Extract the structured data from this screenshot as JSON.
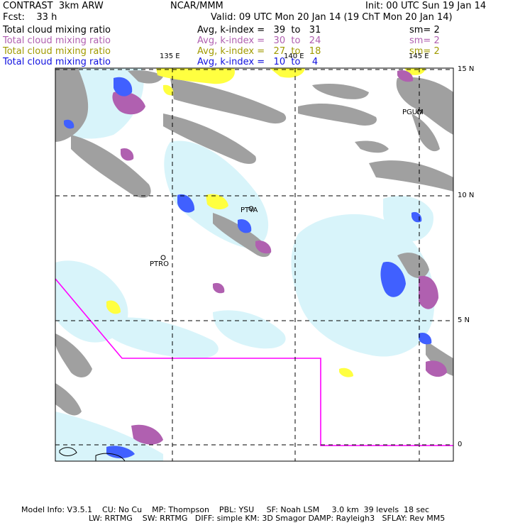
{
  "header": {
    "model": "CONTRAST  3km ARW",
    "org": "NCAR/MMM",
    "init": "Init: 00 UTC Sun 19 Jan 14",
    "fcst": "Fcst:    33 h",
    "valid": "Valid: 09 UTC Mon 20 Jan 14 (19 ChT Mon 20 Jan 14)"
  },
  "fields": [
    {
      "name": "Total cloud mixing ratio",
      "stat": "Avg, k-index =   39  to   31",
      "sm": "sm= 2",
      "color": "#000000"
    },
    {
      "name": "Total cloud mixing ratio",
      "stat": "Avg, k-index =   30  to   24",
      "sm": "sm= 2",
      "color": "#b060b0"
    },
    {
      "name": "Total cloud mixing ratio",
      "stat": "Avg, k-index =   27  to   18",
      "sm": "sm= 2",
      "color": "#a09a00"
    },
    {
      "name": "Total cloud mixing ratio",
      "stat": "Avg, k-index =   10  to    4",
      "sm": "",
      "color": "#1010e0"
    }
  ],
  "map": {
    "lon_labels": [
      "135 E",
      "140 E",
      "145 E"
    ],
    "lat_labels": [
      "15 N",
      "10 N",
      "5 N",
      "0"
    ],
    "stations": [
      "PGUM",
      "PTYA",
      "PTRO"
    ],
    "colors": {
      "black_field": "#a0a0a0",
      "purple_field": "#b060b0",
      "yellow_field": "#ffff40",
      "blue_field": "#4060ff",
      "light_cloud": "#d8f4fa",
      "boundary": "#ff00ff"
    }
  },
  "footer": {
    "line1": "Model Info: V3.5.1    CU: No Cu    MP: Thompson    PBL: YSU     SF: Noah LSM     3.0 km  39 levels  18 sec",
    "line2": "LW: RRTMG    SW: RRTMG   DIFF: simple KM: 3D Smagor DAMP: Rayleigh3   SFLAY: Rev MM5"
  }
}
